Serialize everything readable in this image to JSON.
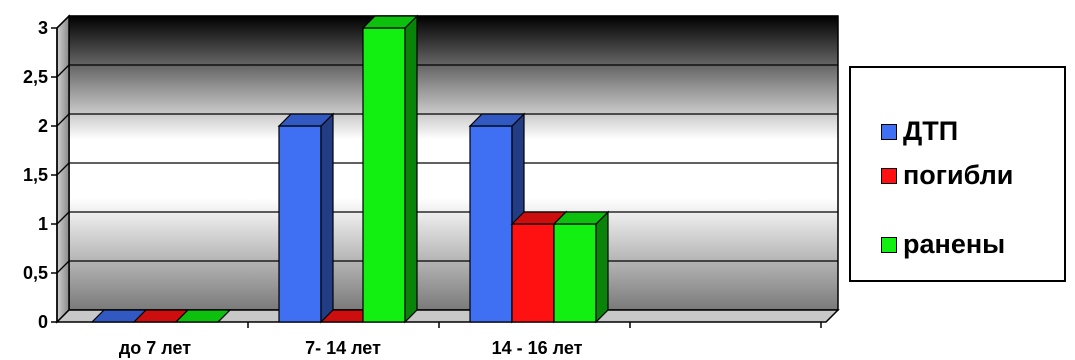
{
  "chart_data": {
    "type": "bar",
    "title": "",
    "xlabel": "",
    "ylabel": "",
    "categories": [
      "до 7 лет",
      "7- 14 лет",
      "14 - 16 лет"
    ],
    "series": [
      {
        "name": "ДТП",
        "values": [
          0,
          2,
          2
        ],
        "color": "#3f6ff2"
      },
      {
        "name": "погибли",
        "values": [
          0,
          0,
          1
        ],
        "color": "#ff1111"
      },
      {
        "name": "ранены",
        "values": [
          0,
          3,
          1
        ],
        "color": "#11f011"
      }
    ],
    "ylim": [
      0,
      3
    ],
    "yticks": [
      "0",
      "0,5",
      "1",
      "1,5",
      "2",
      "2,5",
      "3"
    ],
    "grid": true,
    "legend_position": "right",
    "style": "3d-column"
  }
}
